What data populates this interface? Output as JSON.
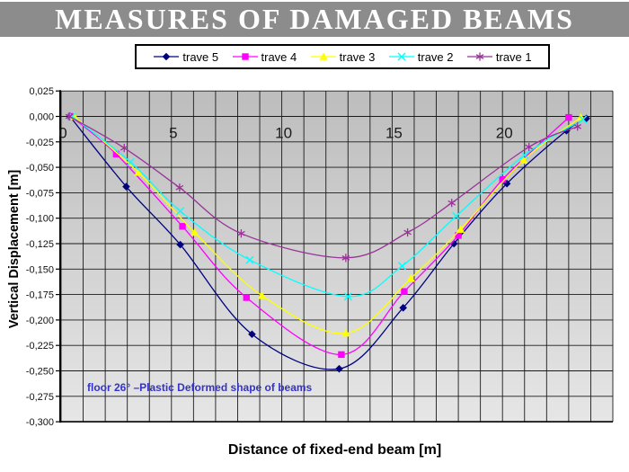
{
  "header": {
    "title": "MEASURES OF DAMAGED BEAMS",
    "background": "#8c8c8c",
    "text_color": "#ffffff"
  },
  "annotation": {
    "text": "floor 26° –Plastic Deformed shape of beams",
    "color": "#3333cc"
  },
  "chart_data": {
    "type": "line",
    "title": "MEASURES OF DAMAGED BEAMS",
    "xlabel": "Distance of fixed-end beam [m]",
    "ylabel": "Vertical Displacement [m]",
    "xlim": [
      0,
      25
    ],
    "ylim": [
      -0.3,
      0.025
    ],
    "grid": true,
    "x_gridline_interval": 1,
    "y_gridline_interval": 0.025,
    "legend_position": "top",
    "plot_background_gradient": [
      "#bdbdbd",
      "#e6e6e6"
    ],
    "gridline_color": "#1a1a1a",
    "x_ticks": [
      {
        "label": "0",
        "value": 0
      },
      {
        "label": "5",
        "value": 5
      },
      {
        "label": "10",
        "value": 10
      },
      {
        "label": "15",
        "value": 15
      },
      {
        "label": "20",
        "value": 20
      }
    ],
    "y_ticks": [
      {
        "label": "0,025",
        "value": 0.025
      },
      {
        "label": "0,000",
        "value": 0.0
      },
      {
        "label": "-0,025",
        "value": -0.025
      },
      {
        "label": "-0,050",
        "value": -0.05
      },
      {
        "label": "-0,075",
        "value": -0.075
      },
      {
        "label": "-0,100",
        "value": -0.1
      },
      {
        "label": "-0,125",
        "value": -0.125
      },
      {
        "label": "-0,150",
        "value": -0.15
      },
      {
        "label": "-0,175",
        "value": -0.175
      },
      {
        "label": "-0,200",
        "value": -0.2
      },
      {
        "label": "-0,225",
        "value": -0.225
      },
      {
        "label": "-0,250",
        "value": -0.25
      },
      {
        "label": "-0,275",
        "value": -0.275
      },
      {
        "label": "-0,300",
        "value": -0.3
      }
    ],
    "series": [
      {
        "name": "trave 5",
        "color": "#000080",
        "marker": "diamond",
        "points": [
          [
            0.4,
            0.0
          ],
          [
            2.95,
            -0.069
          ],
          [
            5.4,
            -0.126
          ],
          [
            8.65,
            -0.214
          ],
          [
            12.6,
            -0.248
          ],
          [
            15.5,
            -0.188
          ],
          [
            17.8,
            -0.125
          ],
          [
            20.2,
            -0.066
          ],
          [
            22.9,
            -0.014
          ],
          [
            23.8,
            -0.002
          ]
        ]
      },
      {
        "name": "trave 4",
        "color": "#ff00ff",
        "marker": "square",
        "points": [
          [
            0.45,
            0.0
          ],
          [
            2.5,
            -0.037
          ],
          [
            5.5,
            -0.108
          ],
          [
            8.4,
            -0.178
          ],
          [
            12.7,
            -0.234
          ],
          [
            15.55,
            -0.172
          ],
          [
            18.0,
            -0.117
          ],
          [
            20.0,
            -0.062
          ],
          [
            23.0,
            -0.001
          ]
        ]
      },
      {
        "name": "trave 3",
        "color": "#ffff00",
        "marker": "triangle",
        "points": [
          [
            0.6,
            0.0
          ],
          [
            3.5,
            -0.055
          ],
          [
            6.05,
            -0.114
          ],
          [
            9.1,
            -0.176
          ],
          [
            12.9,
            -0.213
          ],
          [
            15.85,
            -0.159
          ],
          [
            18.1,
            -0.111
          ],
          [
            20.95,
            -0.043
          ],
          [
            23.55,
            -0.001
          ]
        ]
      },
      {
        "name": "trave 2",
        "color": "#00ffff",
        "marker": "x",
        "points": [
          [
            0.5,
            0.0
          ],
          [
            3.15,
            -0.045
          ],
          [
            5.4,
            -0.093
          ],
          [
            8.55,
            -0.141
          ],
          [
            13.0,
            -0.177
          ],
          [
            15.45,
            -0.147
          ],
          [
            17.9,
            -0.098
          ],
          [
            21.0,
            -0.038
          ],
          [
            23.65,
            -0.003
          ]
        ]
      },
      {
        "name": "trave 1",
        "color": "#993399",
        "marker": "asterisk",
        "points": [
          [
            0.37,
            0.0
          ],
          [
            2.86,
            -0.031
          ],
          [
            5.37,
            -0.07
          ],
          [
            8.16,
            -0.115
          ],
          [
            12.9,
            -0.139
          ],
          [
            15.7,
            -0.114
          ],
          [
            17.7,
            -0.085
          ],
          [
            21.2,
            -0.03
          ],
          [
            23.4,
            -0.01
          ]
        ]
      }
    ],
    "annotation": "floor 26° –Plastic Deformed shape of beams"
  }
}
